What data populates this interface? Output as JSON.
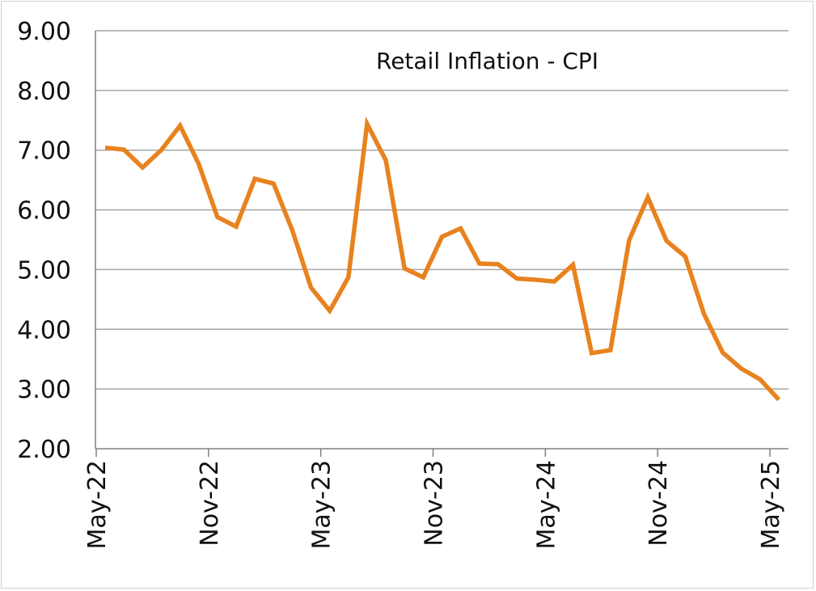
{
  "chart_data": {
    "type": "line",
    "title": "Retail Inflation - CPI",
    "xlabel": "",
    "ylabel": "",
    "ylim": [
      2.0,
      9.0
    ],
    "yticks": [
      "2.00",
      "3.00",
      "4.00",
      "5.00",
      "6.00",
      "7.00",
      "8.00",
      "9.00"
    ],
    "xtick_labels": [
      "May-22",
      "Nov-22",
      "May-23",
      "Nov-23",
      "May-24",
      "Nov-24",
      "May-25"
    ],
    "grid": true,
    "legend": "none",
    "colors": {
      "line": "#E8821E",
      "grid": "#a6a6a6",
      "axis": "#808080"
    },
    "series": [
      {
        "x": [
          "May-22",
          "Jun-22",
          "Jul-22",
          "Aug-22",
          "Sep-22",
          "Oct-22",
          "Nov-22",
          "Dec-22",
          "Jan-23",
          "Feb-23",
          "Mar-23",
          "Apr-23",
          "May-23",
          "Jun-23",
          "Jul-23",
          "Aug-23",
          "Sep-23",
          "Oct-23",
          "Nov-23",
          "Dec-23",
          "Jan-24",
          "Feb-24",
          "Mar-24",
          "Apr-24",
          "May-24",
          "Jun-24",
          "Jul-24",
          "Aug-24",
          "Sep-24",
          "Oct-24",
          "Nov-24",
          "Dec-24",
          "Jan-25",
          "Feb-25",
          "Mar-25",
          "Apr-25",
          "May-25"
        ],
        "values": [
          7.04,
          7.01,
          6.71,
          7.0,
          7.41,
          6.77,
          5.88,
          5.72,
          6.52,
          6.44,
          5.66,
          4.7,
          4.31,
          4.87,
          7.44,
          6.83,
          5.02,
          4.87,
          5.55,
          5.69,
          5.1,
          5.09,
          4.85,
          4.83,
          4.8,
          5.08,
          3.6,
          3.65,
          5.49,
          6.21,
          5.48,
          5.22,
          4.26,
          3.61,
          3.34,
          3.16,
          2.82
        ]
      }
    ]
  }
}
